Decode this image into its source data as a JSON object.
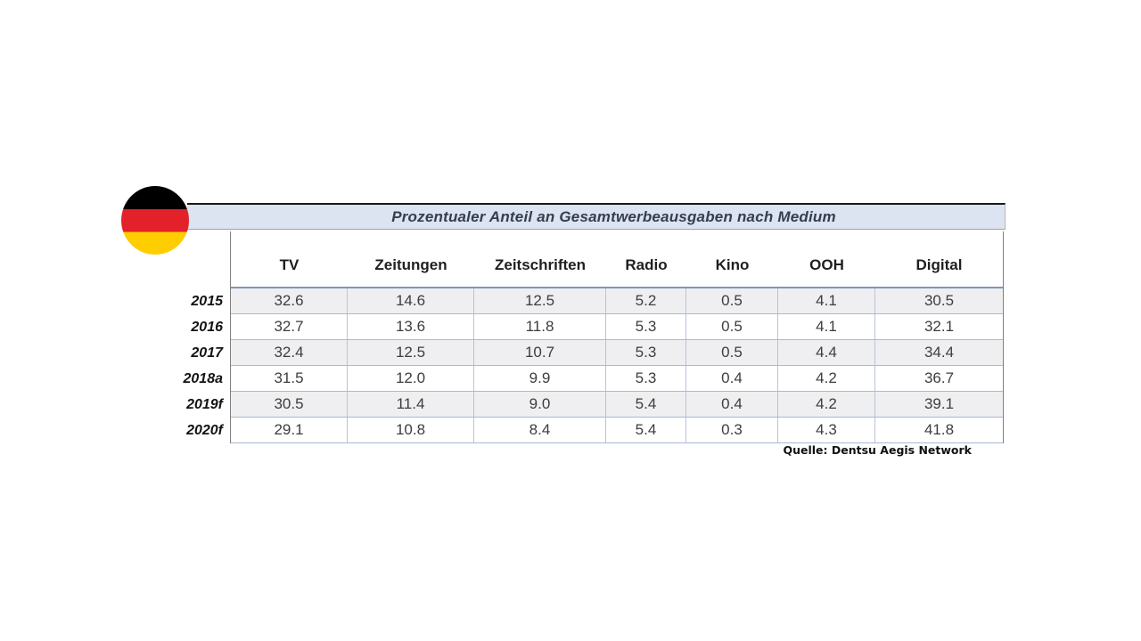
{
  "title": "Prozentualer Anteil an Gesamtwerbeausgaben nach Medium",
  "source": "Quelle: Dentsu Aegis Network",
  "flag": {
    "country": "germany",
    "stripe_colors": [
      "#000000",
      "#e32129",
      "#ffce00"
    ]
  },
  "table": {
    "columns": [
      "TV",
      "Zeitungen",
      "Zeitschriften",
      "Radio",
      "Kino",
      "OOH",
      "Digital"
    ],
    "rows": [
      {
        "year": "2015",
        "values": [
          "32.6",
          "14.6",
          "12.5",
          "5.2",
          "0.5",
          "4.1",
          "30.5"
        ]
      },
      {
        "year": "2016",
        "values": [
          "32.7",
          "13.6",
          "11.8",
          "5.3",
          "0.5",
          "4.1",
          "32.1"
        ]
      },
      {
        "year": "2017",
        "values": [
          "32.4",
          "12.5",
          "10.7",
          "5.3",
          "0.5",
          "4.4",
          "34.4"
        ]
      },
      {
        "year": "2018a",
        "values": [
          "31.5",
          "12.0",
          "9.9",
          "5.3",
          "0.4",
          "4.2",
          "36.7"
        ]
      },
      {
        "year": "2019f",
        "values": [
          "30.5",
          "11.4",
          "9.0",
          "5.4",
          "0.4",
          "4.2",
          "39.1"
        ]
      },
      {
        "year": "2020f",
        "values": [
          "29.1",
          "10.8",
          "8.4",
          "5.4",
          "0.3",
          "4.3",
          "41.8"
        ]
      }
    ]
  },
  "colors": {
    "title_bar_bg": "#dce3f1",
    "title_bar_top_border": "#1a1a1a",
    "title_text": "#333f50",
    "table_outer_border": "#808080",
    "header_divider": "#7e97b8",
    "row_border": "#a9bad3",
    "column_border": "#b7c4da",
    "row_alt_bg": "#efeff1",
    "data_text": "#3d3d3d"
  },
  "chart_data": {
    "type": "table",
    "title": "Prozentualer Anteil an Gesamtwerbeausgaben nach Medium",
    "unit": "percent",
    "categories": [
      "2015",
      "2016",
      "2017",
      "2018a",
      "2019f",
      "2020f"
    ],
    "columns": [
      "TV",
      "Zeitungen",
      "Zeitschriften",
      "Radio",
      "Kino",
      "OOH",
      "Digital"
    ],
    "series": [
      {
        "name": "TV",
        "values": [
          32.6,
          32.7,
          32.4,
          31.5,
          30.5,
          29.1
        ]
      },
      {
        "name": "Zeitungen",
        "values": [
          14.6,
          13.6,
          12.5,
          12.0,
          11.4,
          10.8
        ]
      },
      {
        "name": "Zeitschriften",
        "values": [
          12.5,
          11.8,
          10.7,
          9.9,
          9.0,
          8.4
        ]
      },
      {
        "name": "Radio",
        "values": [
          5.2,
          5.3,
          5.3,
          5.3,
          5.4,
          5.4
        ]
      },
      {
        "name": "Kino",
        "values": [
          0.5,
          0.5,
          0.5,
          0.4,
          0.4,
          0.3
        ]
      },
      {
        "name": "OOH",
        "values": [
          4.1,
          4.1,
          4.4,
          4.2,
          4.2,
          4.3
        ]
      },
      {
        "name": "Digital",
        "values": [
          30.5,
          32.1,
          34.4,
          36.7,
          39.1,
          41.8
        ]
      }
    ],
    "source": "Quelle: Dentsu Aegis Network"
  }
}
